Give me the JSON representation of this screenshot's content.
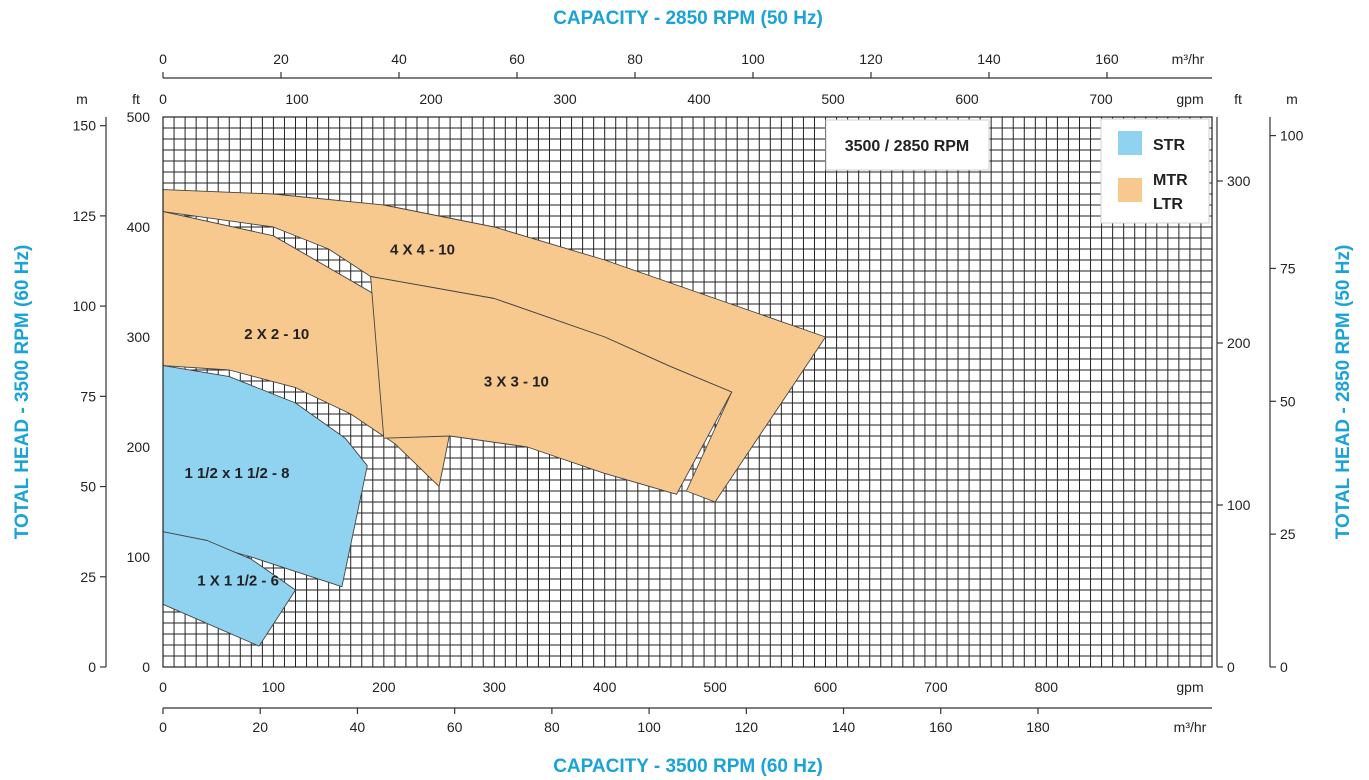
{
  "chart_data": {
    "type": "area",
    "title_top": "CAPACITY - 2850 RPM (50 Hz)",
    "title_bottom": "CAPACITY - 3500 RPM (60 Hz)",
    "ylabel_left": "TOTAL HEAD - 3500 RPM (60 Hz)",
    "ylabel_right": "TOTAL HEAD - 2850 RPM (50 Hz)",
    "rpm_label": "3500 / 2850 RPM",
    "colors": {
      "STR": "#8fd3f1",
      "MTR_LTR": "#f7c98f",
      "title": "#1aa3d9"
    },
    "axes": {
      "bottom_gpm": {
        "unit": "gpm",
        "range": [
          0,
          950
        ],
        "ticks": [
          "0",
          "100",
          "200",
          "300",
          "400",
          "500",
          "600",
          "700",
          "800"
        ]
      },
      "bottom_m3hr": {
        "unit": "m³/hr",
        "range": [
          0,
          215.8
        ],
        "ticks": [
          "0",
          "20",
          "40",
          "60",
          "80",
          "100",
          "120",
          "140",
          "160",
          "180"
        ]
      },
      "top_m3hr": {
        "unit": "m³/hr",
        "range": [
          0,
          177.8
        ],
        "ticks": [
          "0",
          "20",
          "40",
          "60",
          "80",
          "100",
          "120",
          "140",
          "160"
        ]
      },
      "top_gpm": {
        "unit": "gpm",
        "range": [
          0,
          782.8
        ],
        "ticks": [
          "0",
          "100",
          "200",
          "300",
          "400",
          "500",
          "600",
          "700"
        ]
      },
      "left_ft": {
        "unit": "ft",
        "range": [
          0,
          500
        ],
        "ticks": [
          "0",
          "100",
          "200",
          "300",
          "400",
          "500"
        ]
      },
      "left_m": {
        "unit": "m",
        "range": [
          0,
          152.4
        ],
        "ticks": [
          "0",
          "25",
          "50",
          "75",
          "100",
          "125",
          "150"
        ]
      },
      "right_ft": {
        "unit": "ft",
        "range": [
          0,
          339.5
        ],
        "ticks": [
          "0",
          "100",
          "200",
          "300"
        ]
      },
      "right_m": {
        "unit": "m",
        "range": [
          0,
          103.5
        ],
        "ticks": [
          "0",
          "25",
          "50",
          "75",
          "100"
        ]
      }
    },
    "legend": [
      {
        "key": "STR",
        "label": "STR",
        "lines": [
          "STR"
        ]
      },
      {
        "key": "MTR_LTR",
        "label": "MTR LTR",
        "lines": [
          "MTR",
          "LTR"
        ]
      }
    ],
    "series": [
      {
        "name": "1 X 1 1/2 - 6",
        "group": "STR",
        "polygon_gpm_ft": [
          [
            0,
            123
          ],
          [
            40,
            115
          ],
          [
            80,
            98
          ],
          [
            120,
            70
          ],
          [
            87,
            19
          ],
          [
            0,
            57
          ]
        ]
      },
      {
        "name": "1 1/2 x 1 1/2 - 8",
        "group": "STR",
        "polygon_gpm_ft": [
          [
            0,
            274
          ],
          [
            60,
            264
          ],
          [
            120,
            240
          ],
          [
            165,
            208
          ],
          [
            185,
            183
          ],
          [
            162,
            73
          ],
          [
            80,
            100
          ],
          [
            0,
            123
          ]
        ]
      },
      {
        "name": "2 X 2 - 10",
        "group": "MTR_LTR",
        "polygon_gpm_ft": [
          [
            0,
            414
          ],
          [
            100,
            392
          ],
          [
            200,
            334
          ],
          [
            275,
            289
          ],
          [
            250,
            164
          ],
          [
            210,
            203
          ],
          [
            170,
            230
          ],
          [
            120,
            254
          ],
          [
            60,
            270
          ],
          [
            0,
            274
          ]
        ]
      },
      {
        "name": "3 X 3 - 10",
        "group": "MTR_LTR",
        "polygon_gpm_ft": [
          [
            188,
            355
          ],
          [
            300,
            335
          ],
          [
            400,
            300
          ],
          [
            460,
            273
          ],
          [
            515,
            250
          ],
          [
            465,
            157
          ],
          [
            400,
            176
          ],
          [
            330,
            200
          ],
          [
            260,
            210
          ],
          [
            200,
            208
          ]
        ]
      },
      {
        "name": "4 X 4 - 10",
        "group": "MTR_LTR",
        "polygon_gpm_ft": [
          [
            0,
            434
          ],
          [
            100,
            430
          ],
          [
            200,
            420
          ],
          [
            300,
            400
          ],
          [
            400,
            370
          ],
          [
            500,
            335
          ],
          [
            600,
            300
          ],
          [
            500,
            150
          ],
          [
            474,
            160
          ],
          [
            515,
            250
          ],
          [
            460,
            273
          ],
          [
            400,
            300
          ],
          [
            300,
            335
          ],
          [
            188,
            355
          ],
          [
            150,
            380
          ],
          [
            100,
            400
          ],
          [
            0,
            414
          ]
        ]
      }
    ],
    "curve_labels": [
      {
        "name": "1 X 1 1/2 - 6",
        "at_gpm_ft": [
          68,
          74
        ]
      },
      {
        "name": "1 1/2 x 1 1/2 - 8",
        "at_gpm_ft": [
          67,
          172
        ]
      },
      {
        "name": "2 X 2 - 10",
        "at_gpm_ft": [
          103,
          298
        ]
      },
      {
        "name": "3 X 3 - 10",
        "at_gpm_ft": [
          320,
          255
        ]
      },
      {
        "name": "4 X 4 - 10",
        "at_gpm_ft": [
          235,
          375
        ]
      }
    ],
    "grid": true
  }
}
